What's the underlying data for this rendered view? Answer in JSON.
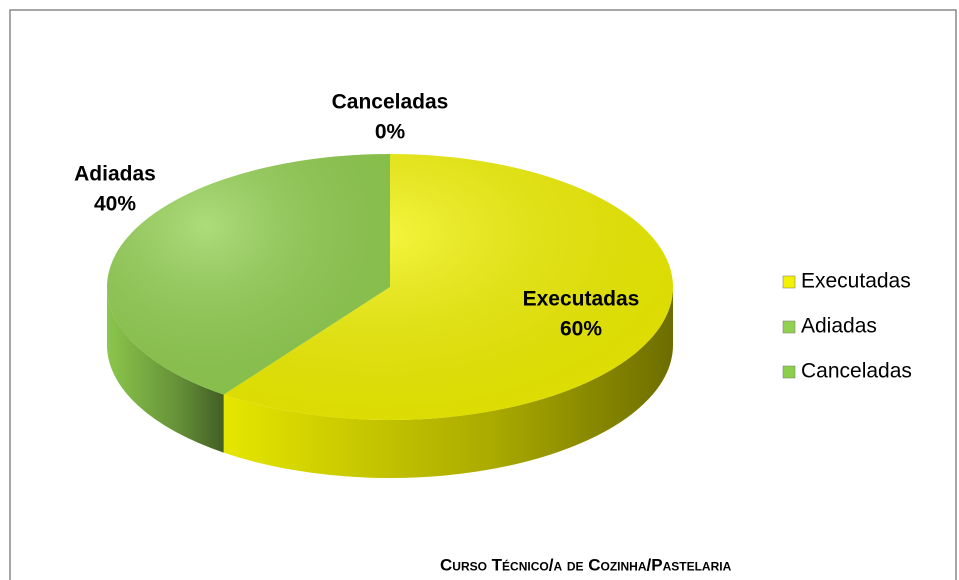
{
  "chart_data": {
    "type": "pie",
    "title": "Curso Técnico/a de Cozinha/Pastelaria",
    "categories": [
      "Executadas",
      "Adiadas",
      "Canceladas"
    ],
    "values": [
      60,
      40,
      0
    ],
    "value_labels": [
      "60%",
      "40%",
      "0%"
    ],
    "colors": [
      "#f2f200",
      "#92d050",
      "#8ccf4a"
    ],
    "legend": "right"
  }
}
